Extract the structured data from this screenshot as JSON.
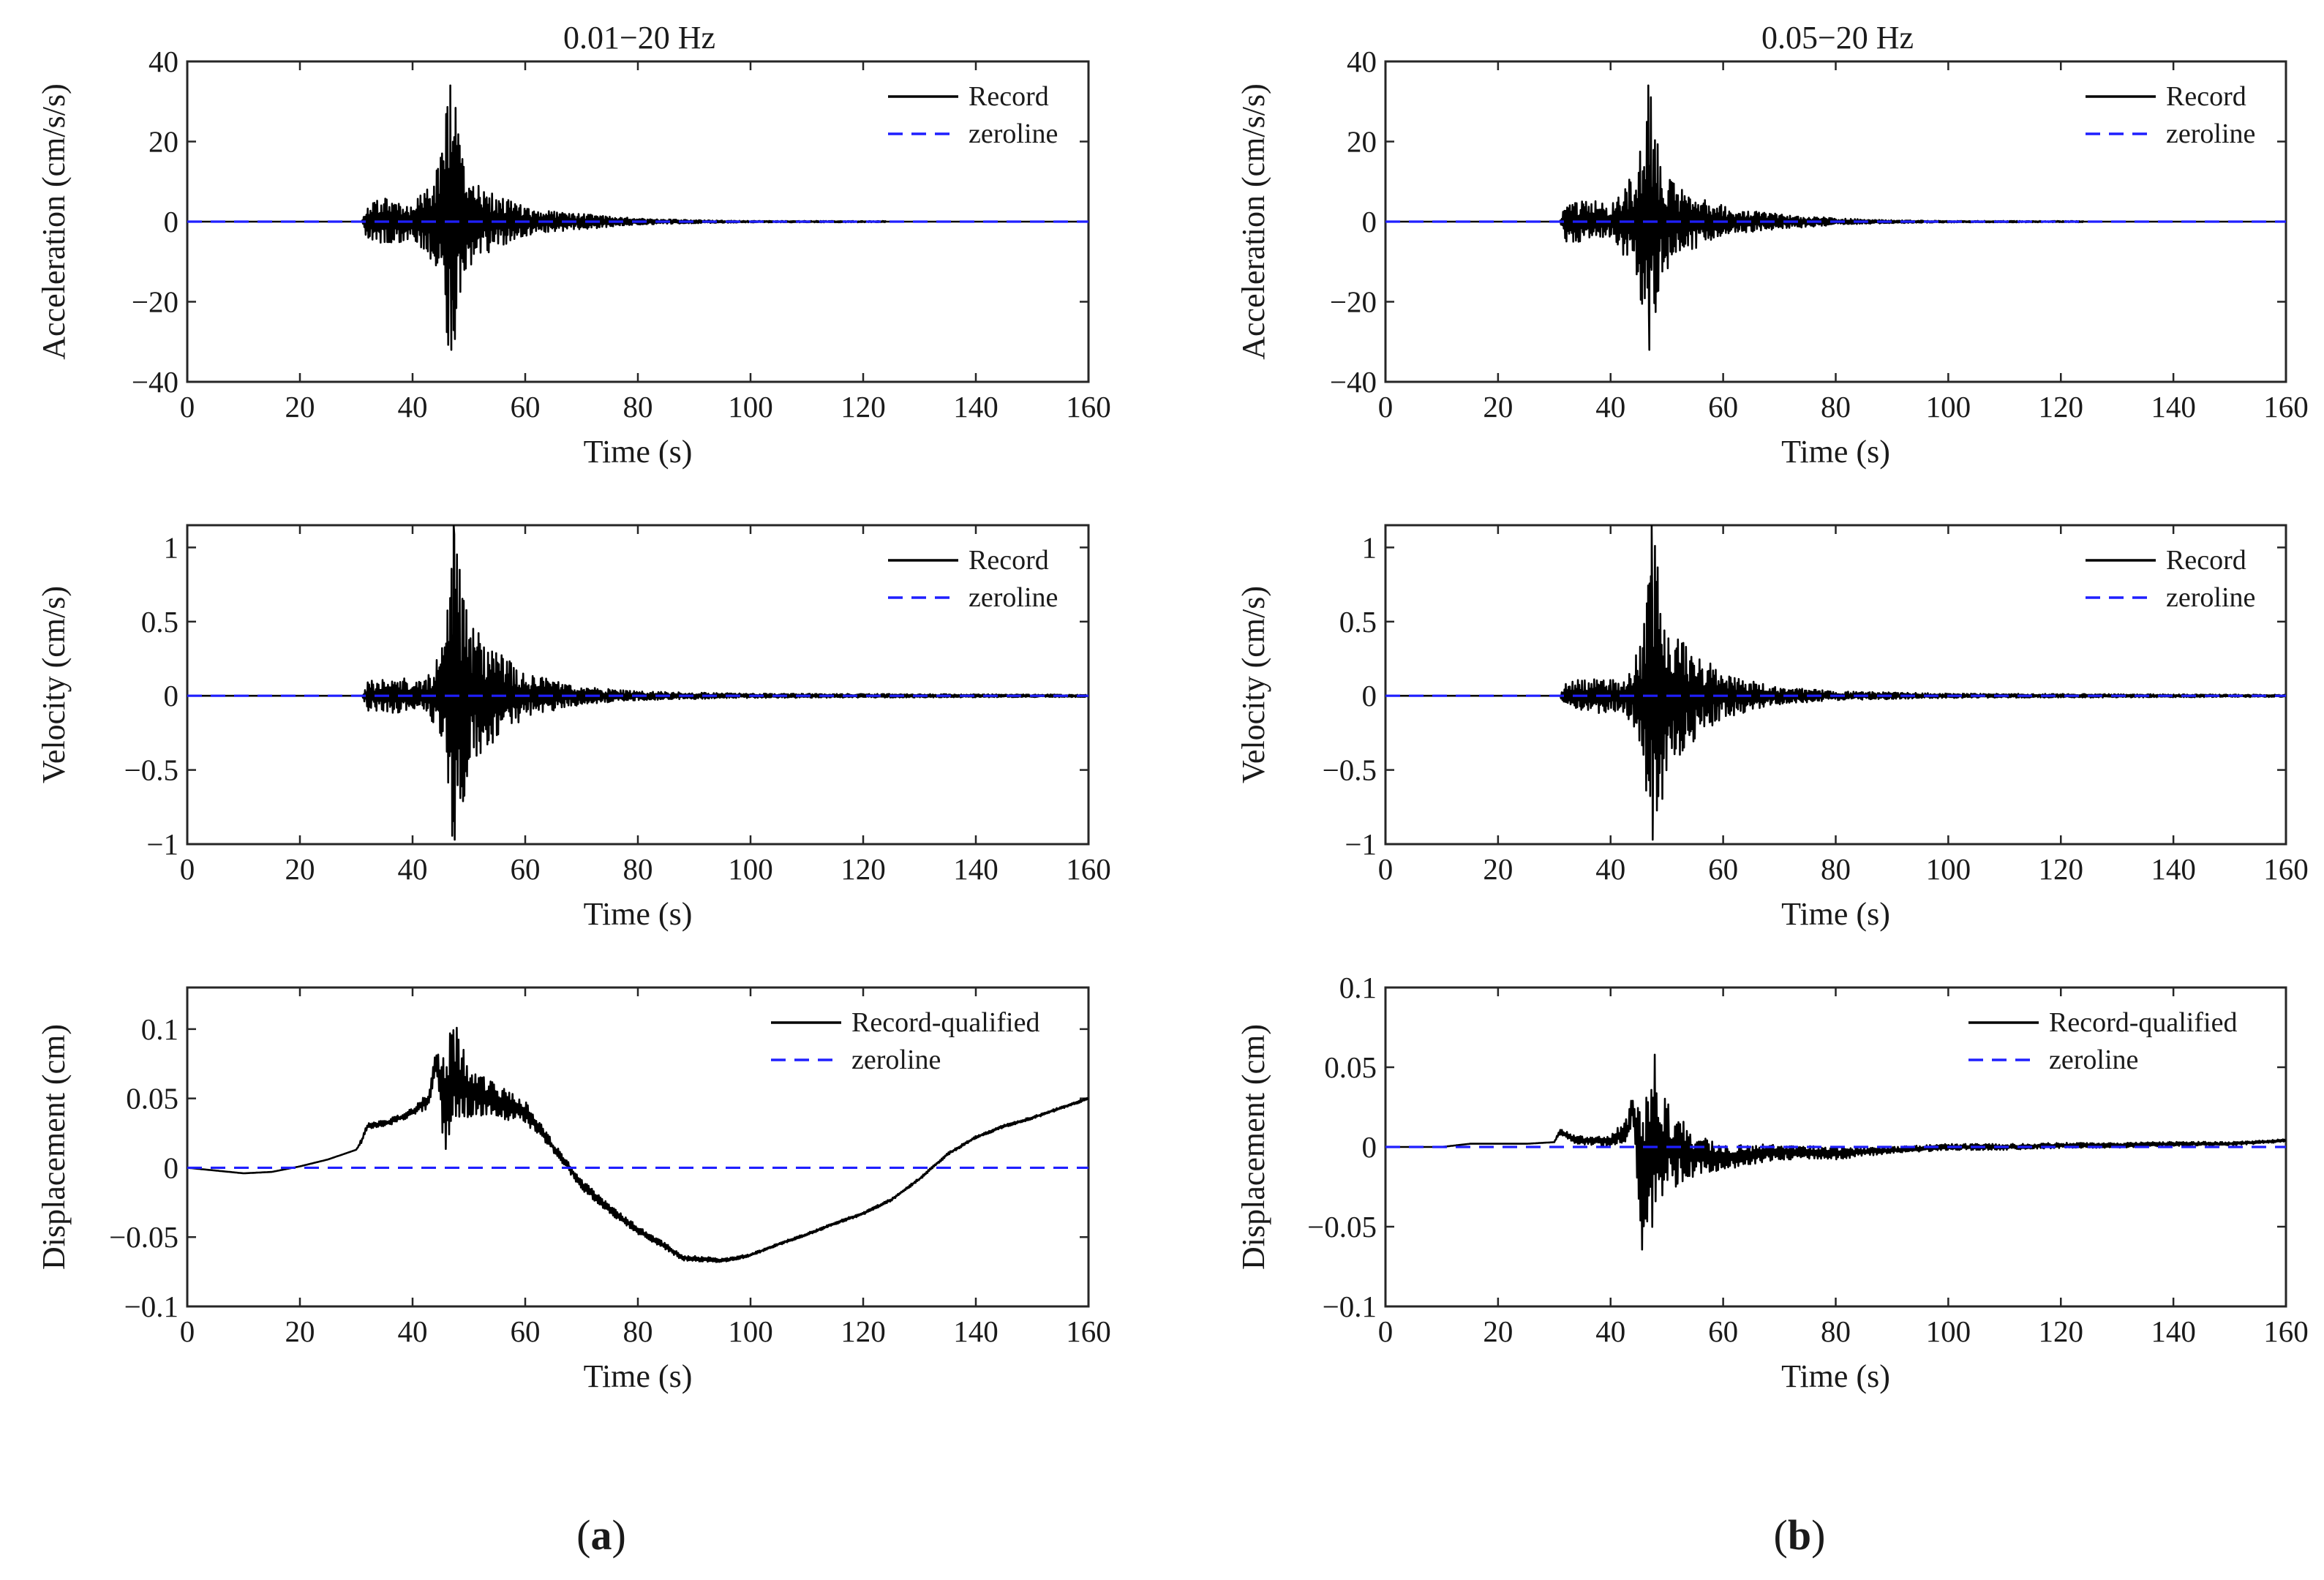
{
  "colors": {
    "record": "#000000",
    "zeroline": "#1f1fff",
    "axes": "#262626"
  },
  "figure": {
    "columns": [
      {
        "title": "0.01−20 Hz",
        "panel_label": "a"
      },
      {
        "title": "0.05−20 Hz",
        "panel_label": "b"
      }
    ]
  },
  "chart_data": [
    {
      "type": "line",
      "column": 0,
      "row": 0,
      "xlabel": "Time (s)",
      "ylabel": "Acceleration (cm/s/s)",
      "xlim": [
        0,
        160
      ],
      "ylim": [
        -40,
        40
      ],
      "xticks": [
        0,
        20,
        40,
        60,
        80,
        100,
        120,
        140,
        160
      ],
      "yticks": [
        -40,
        -20,
        0,
        20,
        40
      ],
      "ytick_labels": [
        "−40",
        "−20",
        "0",
        "20",
        "40"
      ],
      "legend": [
        "Record",
        "zeroline"
      ],
      "legend_position": "top-right",
      "signal": "oscillation",
      "envelope": [
        [
          0,
          0
        ],
        [
          31,
          0
        ],
        [
          32,
          5
        ],
        [
          36,
          6
        ],
        [
          40,
          4
        ],
        [
          43,
          10
        ],
        [
          45,
          16
        ],
        [
          46.5,
          34
        ],
        [
          47.5,
          30
        ],
        [
          49,
          14
        ],
        [
          52,
          9
        ],
        [
          56,
          6
        ],
        [
          62,
          3
        ],
        [
          70,
          2
        ],
        [
          80,
          0.8
        ],
        [
          90,
          0.4
        ],
        [
          100,
          0.2
        ],
        [
          160,
          0.1
        ]
      ],
      "peak": {
        "time": 46.7,
        "max": 34,
        "min": -32
      }
    },
    {
      "type": "line",
      "column": 0,
      "row": 1,
      "xlabel": "Time (s)",
      "ylabel": "Velocity (cm/s)",
      "xlim": [
        0,
        160
      ],
      "ylim": [
        -1,
        1.15
      ],
      "xticks": [
        0,
        20,
        40,
        60,
        80,
        100,
        120,
        140,
        160
      ],
      "yticks": [
        -1,
        -0.5,
        0,
        0.5,
        1
      ],
      "ytick_labels": [
        "−1",
        "−0.5",
        "0",
        "0.5",
        "1"
      ],
      "legend": [
        "Record",
        "zeroline"
      ],
      "legend_position": "top-right",
      "signal": "oscillation",
      "envelope": [
        [
          0,
          0
        ],
        [
          31,
          0
        ],
        [
          32,
          0.1
        ],
        [
          38,
          0.12
        ],
        [
          42,
          0.1
        ],
        [
          44,
          0.2
        ],
        [
          46,
          0.5
        ],
        [
          47.2,
          1.15
        ],
        [
          48.5,
          0.9
        ],
        [
          50,
          0.5
        ],
        [
          55,
          0.3
        ],
        [
          60,
          0.15
        ],
        [
          70,
          0.06
        ],
        [
          80,
          0.03
        ],
        [
          100,
          0.015
        ],
        [
          160,
          0.008
        ]
      ],
      "peak": {
        "time": 47.3,
        "max": 1.15,
        "min": -0.97
      }
    },
    {
      "type": "line",
      "column": 0,
      "row": 2,
      "xlabel": "Time (s)",
      "ylabel": "Displacement (cm)",
      "xlim": [
        0,
        160
      ],
      "ylim": [
        -0.1,
        0.13
      ],
      "xticks": [
        0,
        20,
        40,
        60,
        80,
        100,
        120,
        140,
        160
      ],
      "yticks": [
        -0.1,
        -0.05,
        0,
        0.05,
        0.1
      ],
      "ytick_labels": [
        "−0.1",
        "−0.05",
        "0",
        "0.05",
        "0.1"
      ],
      "legend": [
        "Record-qualified",
        "zeroline"
      ],
      "legend_position": "top-right",
      "signal": "drift",
      "baseline": [
        [
          0,
          0
        ],
        [
          5,
          -0.002
        ],
        [
          10,
          -0.004
        ],
        [
          15,
          -0.003
        ],
        [
          20,
          0.001
        ],
        [
          25,
          0.006
        ],
        [
          30,
          0.013
        ],
        [
          31,
          0.02
        ],
        [
          32,
          0.03
        ],
        [
          36,
          0.033
        ],
        [
          40,
          0.04
        ],
        [
          43,
          0.05
        ],
        [
          44,
          0.075
        ],
        [
          45,
          0.06
        ],
        [
          46,
          0.04
        ],
        [
          47,
          0.07
        ],
        [
          48,
          0.065
        ],
        [
          50,
          0.055
        ],
        [
          55,
          0.048
        ],
        [
          60,
          0.04
        ],
        [
          63,
          0.025
        ],
        [
          66,
          0.01
        ],
        [
          70,
          -0.012
        ],
        [
          75,
          -0.03
        ],
        [
          80,
          -0.045
        ],
        [
          85,
          -0.057
        ],
        [
          88,
          -0.065
        ],
        [
          92,
          -0.066
        ],
        [
          95,
          -0.067
        ],
        [
          100,
          -0.063
        ],
        [
          105,
          -0.055
        ],
        [
          110,
          -0.048
        ],
        [
          115,
          -0.04
        ],
        [
          120,
          -0.033
        ],
        [
          125,
          -0.023
        ],
        [
          130,
          -0.008
        ],
        [
          135,
          0.01
        ],
        [
          140,
          0.022
        ],
        [
          145,
          0.03
        ],
        [
          150,
          0.036
        ],
        [
          155,
          0.043
        ],
        [
          160,
          0.05
        ]
      ],
      "noise": [
        [
          0,
          0
        ],
        [
          30,
          0
        ],
        [
          31,
          0.002
        ],
        [
          40,
          0.003
        ],
        [
          44,
          0.008
        ],
        [
          46,
          0.04
        ],
        [
          48,
          0.035
        ],
        [
          52,
          0.015
        ],
        [
          58,
          0.01
        ],
        [
          65,
          0.004
        ],
        [
          80,
          0.003
        ],
        [
          90,
          0.002
        ],
        [
          100,
          0.001
        ],
        [
          160,
          0.001
        ]
      ]
    },
    {
      "type": "line",
      "column": 1,
      "row": 0,
      "xlabel": "Time (s)",
      "ylabel": "Acceleration (cm/s/s)",
      "xlim": [
        0,
        160
      ],
      "ylim": [
        -40,
        40
      ],
      "xticks": [
        0,
        20,
        40,
        60,
        80,
        100,
        120,
        140,
        160
      ],
      "yticks": [
        -40,
        -20,
        0,
        20,
        40
      ],
      "ytick_labels": [
        "−40",
        "−20",
        "0",
        "20",
        "40"
      ],
      "legend": [
        "Record",
        "zeroline"
      ],
      "legend_position": "top-right",
      "signal": "oscillation",
      "envelope": [
        [
          0,
          0
        ],
        [
          31,
          0
        ],
        [
          32,
          5
        ],
        [
          36,
          6
        ],
        [
          40,
          4
        ],
        [
          43,
          10
        ],
        [
          45,
          16
        ],
        [
          46.5,
          34
        ],
        [
          47.5,
          30
        ],
        [
          49,
          14
        ],
        [
          52,
          9
        ],
        [
          56,
          6
        ],
        [
          62,
          3
        ],
        [
          70,
          2
        ],
        [
          80,
          0.8
        ],
        [
          90,
          0.4
        ],
        [
          100,
          0.2
        ],
        [
          160,
          0.1
        ]
      ],
      "peak": {
        "time": 46.7,
        "max": 34,
        "min": -32
      }
    },
    {
      "type": "line",
      "column": 1,
      "row": 1,
      "xlabel": "Time (s)",
      "ylabel": "Velocity (cm/s)",
      "xlim": [
        0,
        160
      ],
      "ylim": [
        -1,
        1.15
      ],
      "xticks": [
        0,
        20,
        40,
        60,
        80,
        100,
        120,
        140,
        160
      ],
      "yticks": [
        -1,
        -0.5,
        0,
        0.5,
        1
      ],
      "ytick_labels": [
        "−1",
        "−0.5",
        "0",
        "0.5",
        "1"
      ],
      "legend": [
        "Record",
        "zeroline"
      ],
      "legend_position": "top-right",
      "signal": "oscillation",
      "envelope": [
        [
          0,
          0
        ],
        [
          31,
          0
        ],
        [
          32,
          0.1
        ],
        [
          38,
          0.12
        ],
        [
          42,
          0.1
        ],
        [
          44,
          0.2
        ],
        [
          46,
          0.5
        ],
        [
          47.2,
          1.15
        ],
        [
          48.5,
          0.9
        ],
        [
          50,
          0.5
        ],
        [
          55,
          0.3
        ],
        [
          60,
          0.15
        ],
        [
          70,
          0.06
        ],
        [
          80,
          0.03
        ],
        [
          100,
          0.015
        ],
        [
          160,
          0.008
        ]
      ],
      "peak": {
        "time": 47.3,
        "max": 1.15,
        "min": -0.97
      }
    },
    {
      "type": "line",
      "column": 1,
      "row": 2,
      "xlabel": "Time (s)",
      "ylabel": "Displacement (cm)",
      "xlim": [
        0,
        160
      ],
      "ylim": [
        -0.1,
        0.1
      ],
      "xticks": [
        0,
        20,
        40,
        60,
        80,
        100,
        120,
        140,
        160
      ],
      "yticks": [
        -0.1,
        -0.05,
        0,
        0.05,
        0.1
      ],
      "ytick_labels": [
        "−0.1",
        "−0.05",
        "0",
        "0.05",
        "0.1"
      ],
      "legend": [
        "Record-qualified",
        "zeroline"
      ],
      "legend_position": "top-right",
      "signal": "drift",
      "baseline": [
        [
          0,
          0
        ],
        [
          10,
          0
        ],
        [
          15,
          0.002
        ],
        [
          20,
          0.002
        ],
        [
          25,
          0.002
        ],
        [
          30,
          0.003
        ],
        [
          31,
          0.01
        ],
        [
          32,
          0.008
        ],
        [
          34,
          0.004
        ],
        [
          40,
          0.004
        ],
        [
          43,
          0.01
        ],
        [
          44,
          0.025
        ],
        [
          45,
          -0.01
        ],
        [
          46,
          -0.02
        ],
        [
          48,
          0.0
        ],
        [
          50,
          0.0
        ],
        [
          55,
          -0.005
        ],
        [
          60,
          -0.007
        ],
        [
          70,
          -0.003
        ],
        [
          80,
          -0.004
        ],
        [
          90,
          -0.002
        ],
        [
          100,
          0.0
        ],
        [
          110,
          0.0
        ],
        [
          120,
          0.001
        ],
        [
          130,
          0.001
        ],
        [
          140,
          0.002
        ],
        [
          150,
          0.002
        ],
        [
          155,
          0.003
        ],
        [
          160,
          0.004
        ]
      ],
      "noise": [
        [
          0,
          0
        ],
        [
          30,
          0
        ],
        [
          31,
          0.002
        ],
        [
          40,
          0.004
        ],
        [
          44,
          0.01
        ],
        [
          46,
          0.06
        ],
        [
          47.5,
          0.065
        ],
        [
          50,
          0.03
        ],
        [
          54,
          0.015
        ],
        [
          60,
          0.008
        ],
        [
          70,
          0.005
        ],
        [
          80,
          0.004
        ],
        [
          90,
          0.002
        ],
        [
          100,
          0.002
        ],
        [
          160,
          0.001
        ]
      ]
    }
  ]
}
